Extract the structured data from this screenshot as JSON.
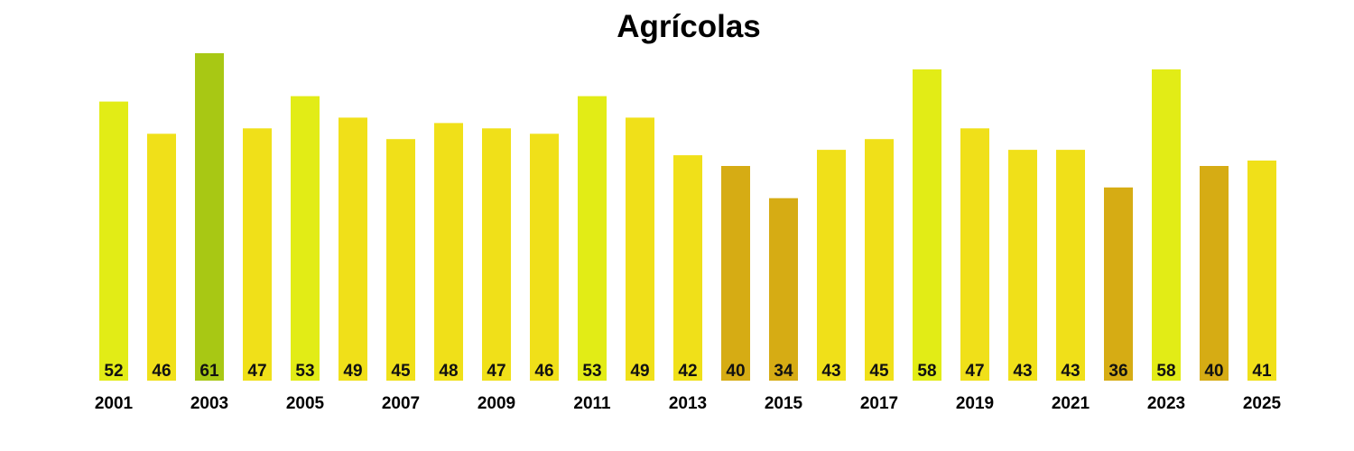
{
  "chart_data": {
    "type": "bar",
    "title": "Agrícolas",
    "xlabel": "",
    "ylabel": "",
    "categories": [
      "2001",
      "2002",
      "2003",
      "2004",
      "2005",
      "2006",
      "2007",
      "2008",
      "2009",
      "2010",
      "2011",
      "2012",
      "2013",
      "2014",
      "2015",
      "2016",
      "2017",
      "2018",
      "2019",
      "2020",
      "2021",
      "2022",
      "2023",
      "2024",
      "2025"
    ],
    "values": [
      52,
      46,
      61,
      47,
      53,
      49,
      45,
      48,
      47,
      46,
      53,
      49,
      42,
      40,
      34,
      43,
      45,
      58,
      47,
      43,
      43,
      36,
      58,
      40,
      41
    ],
    "tick_labels": [
      "2001",
      "2003",
      "2005",
      "2007",
      "2009",
      "2011",
      "2013",
      "2015",
      "2017",
      "2019",
      "2021",
      "2023",
      "2025"
    ],
    "ylim": [
      0,
      61
    ],
    "grid": false,
    "legend": "none",
    "colors": {
      "highest": "#a8c814",
      "high": "#e2ec16",
      "mid": "#f0e019",
      "low": "#d6ac14"
    }
  }
}
